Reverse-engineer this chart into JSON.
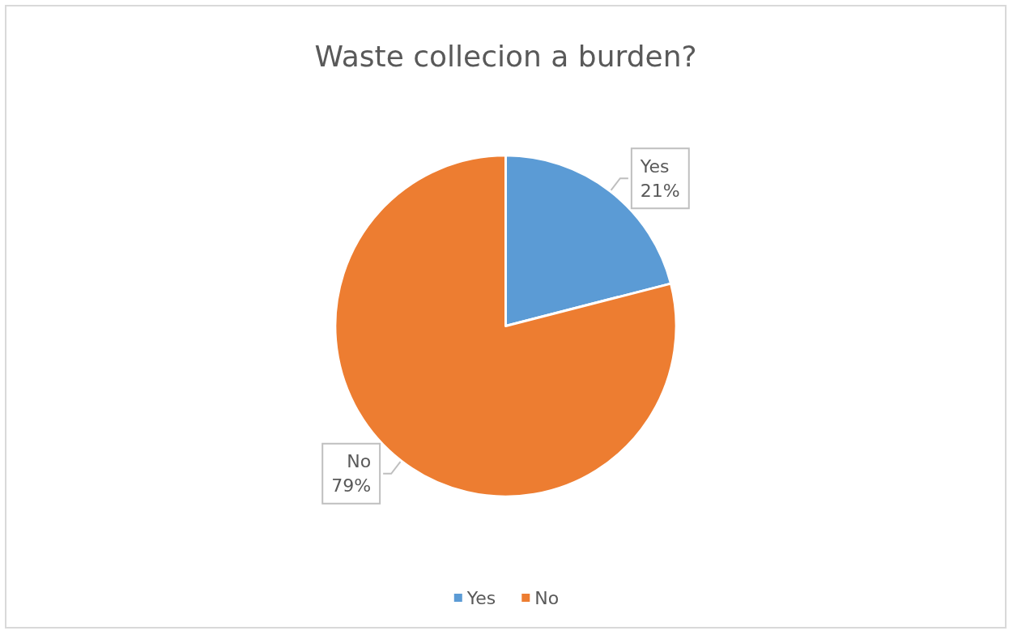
{
  "chart_data": {
    "type": "pie",
    "title": "Waste collecion a burden?",
    "categories": [
      "Yes",
      "No"
    ],
    "values": [
      21,
      79
    ],
    "colors": [
      "#5b9bd5",
      "#ed7d31"
    ],
    "value_labels": [
      "21%",
      "79%"
    ],
    "legend": "bottom"
  }
}
